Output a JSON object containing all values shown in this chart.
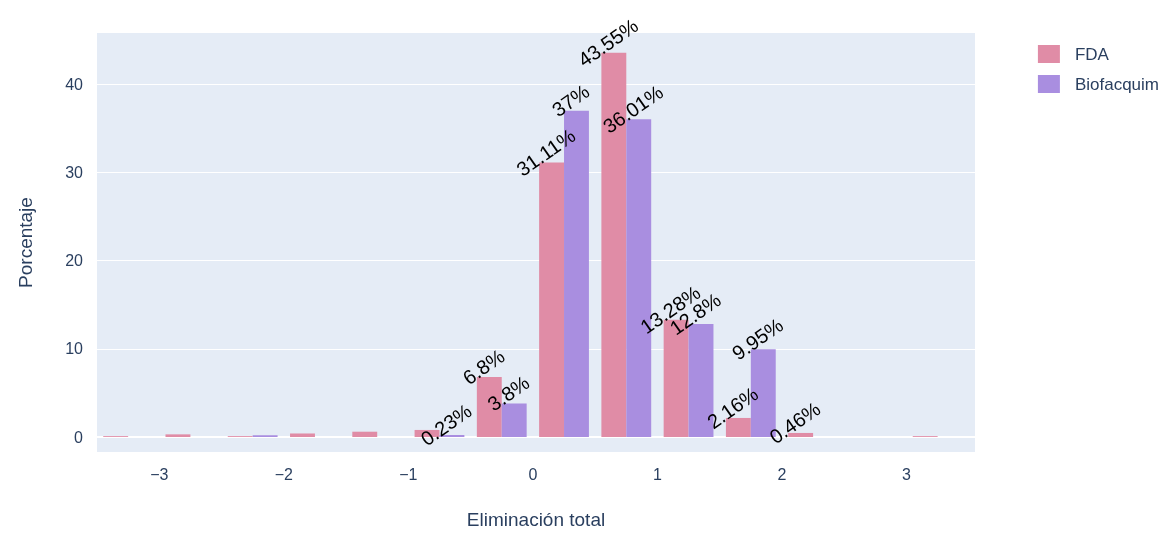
{
  "chart_data": {
    "type": "histogram",
    "xlabel": "Eliminación total",
    "ylabel": "Porcentaje",
    "bins": [
      -3.5,
      -3,
      -2.5,
      -2,
      -1.5,
      -1,
      -0.5,
      0,
      0.5,
      1,
      1.5,
      2,
      2.5,
      3,
      3.5
    ],
    "series": [
      {
        "name": "FDA",
        "color": "#e08ca6",
        "values": [
          0.1,
          0.3,
          0.1,
          0.4,
          0.6,
          0.8,
          6.8,
          31.11,
          43.55,
          13.28,
          2.16,
          0.46,
          0,
          0.1
        ],
        "value_labels": [
          null,
          null,
          null,
          null,
          null,
          null,
          "6.8%",
          "31.11%",
          "43.55%",
          "13.28%",
          "2.16%",
          "0.46%",
          null,
          null
        ]
      },
      {
        "name": "Biofacquim",
        "color": "#a98ee0",
        "values": [
          0,
          0,
          0.2,
          0,
          0,
          0.23,
          3.8,
          37,
          36.01,
          12.8,
          9.95,
          0,
          0,
          0
        ],
        "value_labels": [
          null,
          null,
          null,
          null,
          null,
          "0.23%",
          "3.8%",
          "37%",
          "36.01%",
          "12.8%",
          "9.95%",
          null,
          null,
          null
        ]
      }
    ],
    "xlim": [
      -3.5,
      3.55
    ],
    "xticks": [
      {
        "value": -3,
        "label": "−3"
      },
      {
        "value": -2,
        "label": "−2"
      },
      {
        "value": -1,
        "label": "−1"
      },
      0,
      1,
      2,
      3
    ],
    "ylim": [
      -1.7,
      45.8
    ],
    "yticks": [
      0,
      10,
      20,
      30,
      40
    ],
    "grid": "y",
    "legend": "top right"
  }
}
